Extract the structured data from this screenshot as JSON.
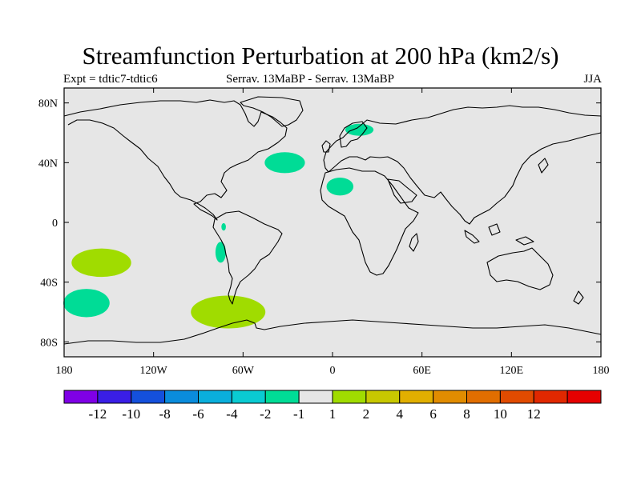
{
  "title": "Streamfunction Perturbation at 200 hPa (km2/s)",
  "subtitle_left": "Expt = tdtic7-tdtic6",
  "subtitle_center": "Serrav.   13MaBP - Serrav.   13MaBP",
  "subtitle_right": "JJA",
  "map": {
    "projection": "equirectangular",
    "lon_range": [
      -180,
      180
    ],
    "lat_range": [
      -90,
      90
    ],
    "background_color": "#e6e6e6",
    "coastline_color": "#000000",
    "lon_ticks": [
      {
        "value": -180,
        "label": "180"
      },
      {
        "value": -120,
        "label": "120W"
      },
      {
        "value": -60,
        "label": "60W"
      },
      {
        "value": 0,
        "label": "0"
      },
      {
        "value": 60,
        "label": "60E"
      },
      {
        "value": 120,
        "label": "120E"
      },
      {
        "value": 180,
        "label": "180"
      }
    ],
    "lat_ticks": [
      {
        "value": 80,
        "label": "80N"
      },
      {
        "value": 40,
        "label": "40N"
      },
      {
        "value": 0,
        "label": "0"
      },
      {
        "value": -40,
        "label": "40S"
      },
      {
        "value": -80,
        "label": "80S"
      }
    ],
    "anomalies": [
      {
        "lon": -155,
        "lat": -27,
        "rlon": 20,
        "rlat": 9.5,
        "level": "1 to 2",
        "color": "#a0dc00"
      },
      {
        "lon": -165,
        "lat": -54,
        "rlon": 15.5,
        "rlat": 9.5,
        "level": "-2 to -1",
        "color": "#00dc96"
      },
      {
        "lon": -70,
        "lat": -60,
        "rlon": 25,
        "rlat": 11,
        "level": "1 to 2",
        "color": "#a0dc00"
      },
      {
        "lon": -75,
        "lat": -20,
        "rlon": 3.5,
        "rlat": 7,
        "level": "-2 to -1",
        "color": "#00dc96"
      },
      {
        "lon": -73,
        "lat": -3,
        "rlon": 1.5,
        "rlat": 2.5,
        "level": "-2 to -1",
        "color": "#00dc96"
      },
      {
        "lon": -32,
        "lat": 40,
        "rlon": 13.5,
        "rlat": 7,
        "level": "-2 to -1",
        "color": "#00dc96"
      },
      {
        "lon": 5,
        "lat": 24,
        "rlon": 9,
        "rlat": 6,
        "level": "-2 to -1",
        "color": "#00dc96"
      },
      {
        "lon": 18,
        "lat": 62,
        "rlon": 9.5,
        "rlat": 4,
        "level": "-2 to -1",
        "color": "#00dc96"
      }
    ]
  },
  "colorbar": {
    "colors": [
      "#7f00e6",
      "#3a1ee6",
      "#1450dc",
      "#0a8cdc",
      "#0aafdc",
      "#0acbd2",
      "#00dc96",
      "#e6e6e6",
      "#a0dc00",
      "#c8c800",
      "#e1af00",
      "#e18c00",
      "#e16e00",
      "#e14b00",
      "#e12800",
      "#e60000"
    ],
    "labels": [
      "-12",
      "-10",
      "-8",
      "-6",
      "-4",
      "-2",
      "-1",
      "1",
      "2",
      "4",
      "6",
      "8",
      "10",
      "12"
    ]
  }
}
